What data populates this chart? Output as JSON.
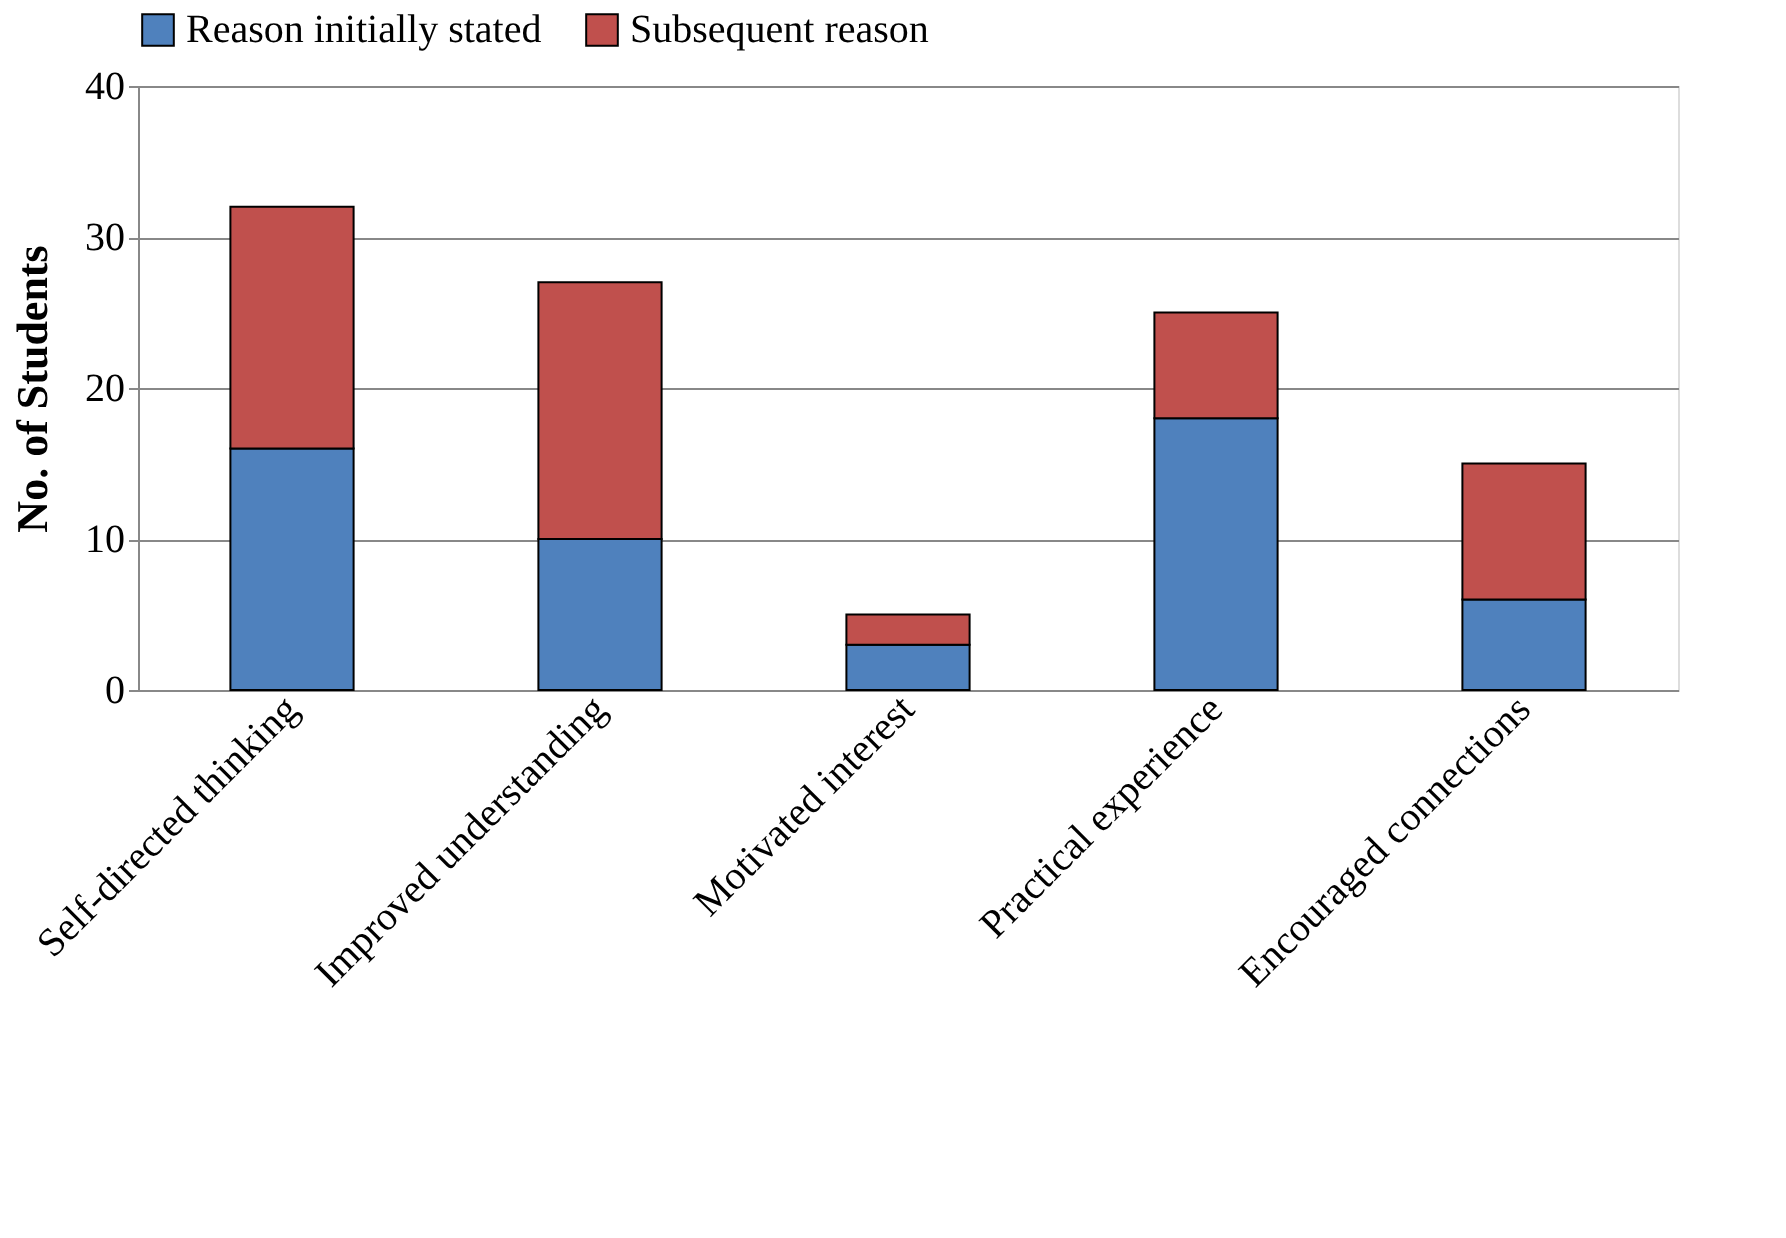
{
  "chart_data": {
    "type": "bar",
    "stacked": true,
    "ylabel": "No. of Students",
    "categories": [
      "Self-directed thinking",
      "Improved understanding",
      "Motivated interest",
      "Practical experience",
      "Encouraged connections"
    ],
    "series": [
      {
        "name": "Reason initially stated",
        "color": "#4f81bd",
        "values": [
          16,
          10,
          3,
          18,
          6
        ]
      },
      {
        "name": "Subsequent reason",
        "color": "#c0504d",
        "values": [
          16,
          17,
          2,
          7,
          9
        ]
      }
    ],
    "ylim": [
      0,
      40
    ],
    "yticks": [
      0,
      10,
      20,
      30,
      40
    ],
    "grid": "y",
    "legend": "top"
  }
}
